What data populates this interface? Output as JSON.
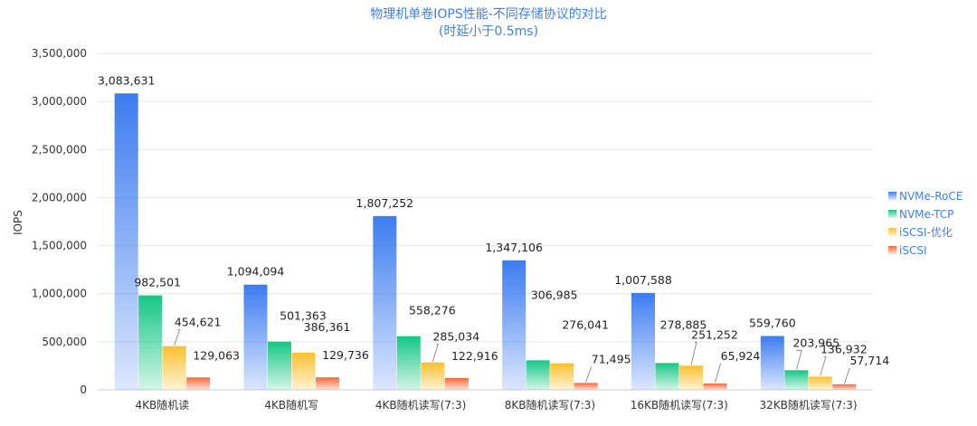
{
  "chart_data": {
    "type": "bar",
    "title": "物理机单卷IOPS性能-不同存储协议的对比",
    "subtitle": "(时延小于0.5ms)",
    "ylabel": "IOPS",
    "xlabel": "",
    "ylim": [
      0,
      3500000
    ],
    "yticks": [
      "0",
      "500,000",
      "1,000,000",
      "1,500,000",
      "2,000,000",
      "2,500,000",
      "3,000,000",
      "3,500,000"
    ],
    "grid": true,
    "legend_position": "right",
    "categories": [
      "4KB随机读",
      "4KB随机写",
      "4KB随机读写(7:3)",
      "8KB随机读写(7:3)",
      "16KB随机读写(7:3)",
      "32KB随机读写(7:3)"
    ],
    "series": [
      {
        "name": "NVMe-RoCE",
        "color": "#3c7cf0",
        "values": [
          3083631,
          1094094,
          1807252,
          1347106,
          1007588,
          559760
        ],
        "labels": [
          "3,083,631",
          "1,094,094",
          "1,807,252",
          "1,347,106",
          "1,007,588",
          "559,760"
        ]
      },
      {
        "name": "NVMe-TCP",
        "color": "#16c784",
        "values": [
          982501,
          501363,
          558276,
          306985,
          278885,
          203965
        ],
        "labels": [
          "982,501",
          "501,363",
          "558,276",
          "306,985",
          "278,885",
          "203,965"
        ]
      },
      {
        "name": "iSCSI-优化",
        "color": "#fbc02d",
        "values": [
          454621,
          386361,
          285034,
          276041,
          251252,
          136932
        ],
        "labels": [
          "454,621",
          "386,361",
          "285,034",
          "276,041",
          "251,252",
          "136,932"
        ]
      },
      {
        "name": "iSCSI",
        "color": "#f4683a",
        "values": [
          129063,
          129736,
          122916,
          71495,
          65924,
          57714
        ],
        "labels": [
          "129,063",
          "129,736",
          "122,916",
          "71,495",
          "65,924",
          "57,714"
        ]
      }
    ]
  }
}
